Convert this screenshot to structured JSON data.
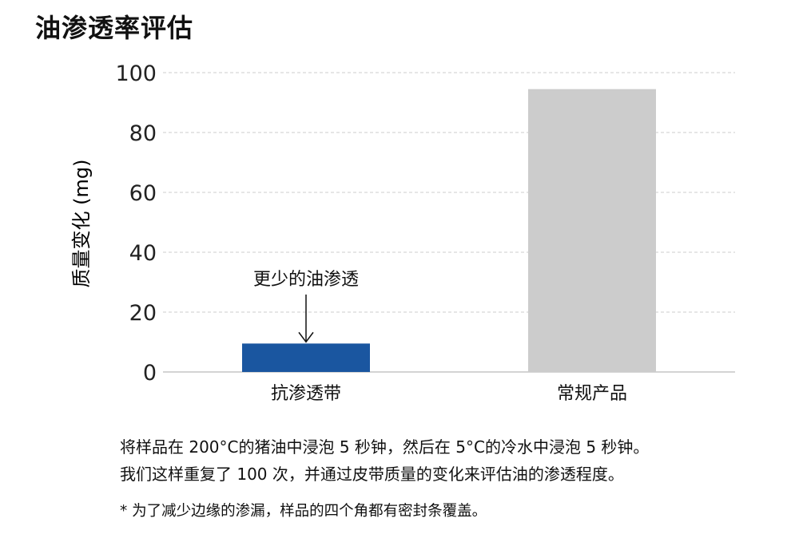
{
  "title": "油渗透率评估",
  "chart_data": {
    "type": "bar",
    "categories": [
      "抗渗透带",
      "常规产品"
    ],
    "values": [
      9.5,
      94.5
    ],
    "colors": [
      "#1a56a0",
      "#cccccc"
    ],
    "ylabel": "质量变化 (mg)",
    "ylim": [
      0,
      100
    ],
    "yticks": [
      0,
      20,
      40,
      60,
      80,
      100
    ],
    "grid": true,
    "annotation": {
      "text": "更少的油渗透",
      "category": "抗渗透带"
    }
  },
  "notes": [
    "将样品在 200°C的猪油中浸泡 5 秒钟，然后在 5°C的冷水中浸泡 5 秒钟。",
    "我们这样重复了 100 次，并通过皮带质量的变化来评估油的渗透程度。"
  ],
  "footnote": "* 为了减少边缘的渗漏，样品的四个角都有密封条覆盖。"
}
